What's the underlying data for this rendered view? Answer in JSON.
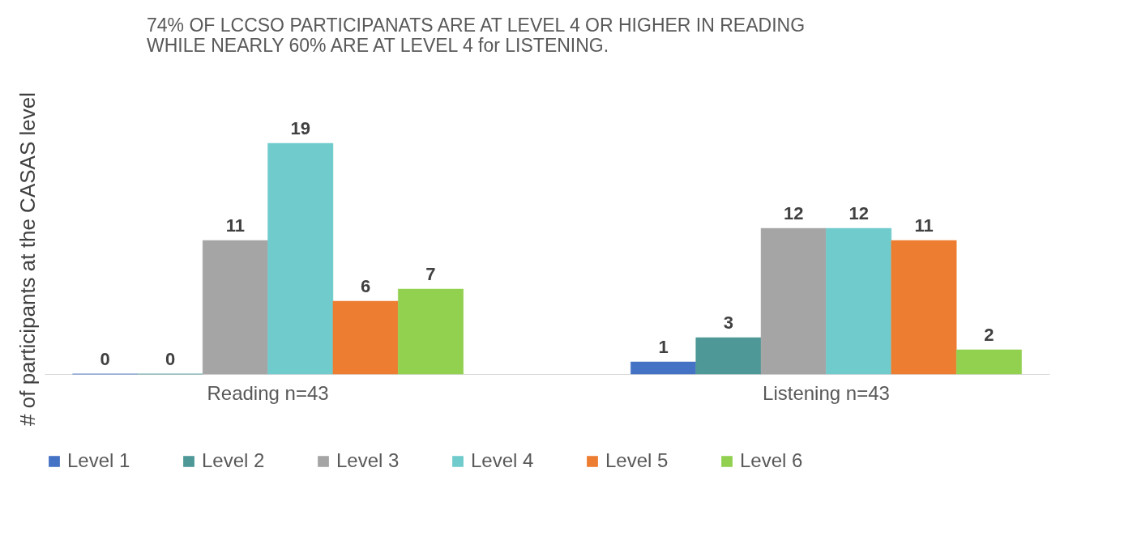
{
  "chart_data": {
    "type": "bar",
    "title": "74% OF LCCSO PARTICIPANATS ARE AT LEVEL 4 OR HIGHER IN READING\nWHILE NEARLY 60% ARE AT LEVEL 4 for LISTENING.",
    "ylabel": "# of participants at the CASAS level",
    "categories": [
      "Reading n=43",
      "Listening n=43"
    ],
    "series": [
      {
        "name": "Level 1",
        "color": "#4472c4",
        "values": [
          0,
          1
        ]
      },
      {
        "name": "Level 2",
        "color": "#4e9898",
        "values": [
          0,
          3
        ]
      },
      {
        "name": "Level 3",
        "color": "#a5a5a5",
        "values": [
          11,
          12
        ]
      },
      {
        "name": "Level 4",
        "color": "#70cbcc",
        "values": [
          19,
          12
        ]
      },
      {
        "name": "Level 5",
        "color": "#ed7d31",
        "values": [
          6,
          11
        ]
      },
      {
        "name": "Level 6",
        "color": "#92d050",
        "values": [
          7,
          2
        ]
      }
    ],
    "data_labels": true,
    "legend": "bottom",
    "grid": false
  }
}
